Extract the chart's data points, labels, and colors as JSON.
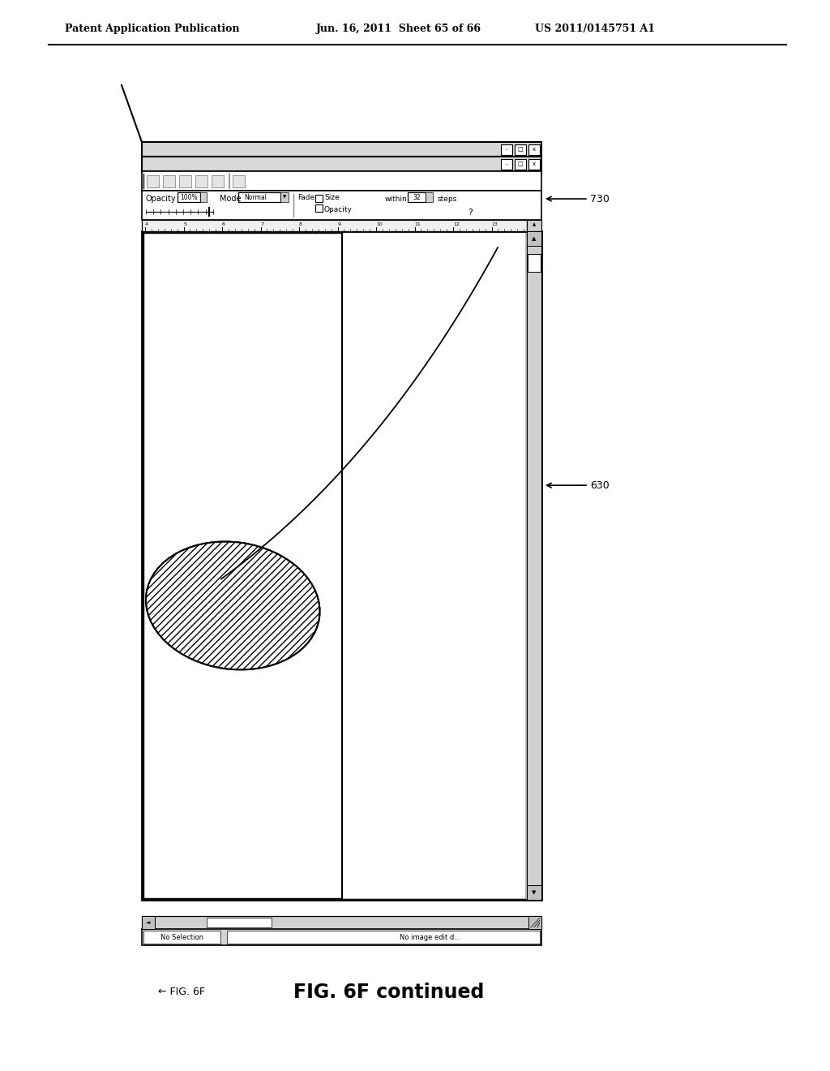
{
  "bg_color": "#ffffff",
  "header_text_left": "Patent Application Publication",
  "header_text_mid": "Jun. 16, 2011  Sheet 65 of 66",
  "header_text_right": "US 2011/0145751 A1",
  "fig_label": "FIG. 6F continued",
  "fig_label_arrow": "← FIG. 6F",
  "label_730": "730",
  "label_630": "630",
  "footer_left": "No Selection",
  "footer_right": "No image edit d...",
  "ruler_numbers": [
    "4",
    "5",
    "6",
    "7",
    "8",
    "9",
    "10",
    "11",
    "12",
    "13"
  ]
}
